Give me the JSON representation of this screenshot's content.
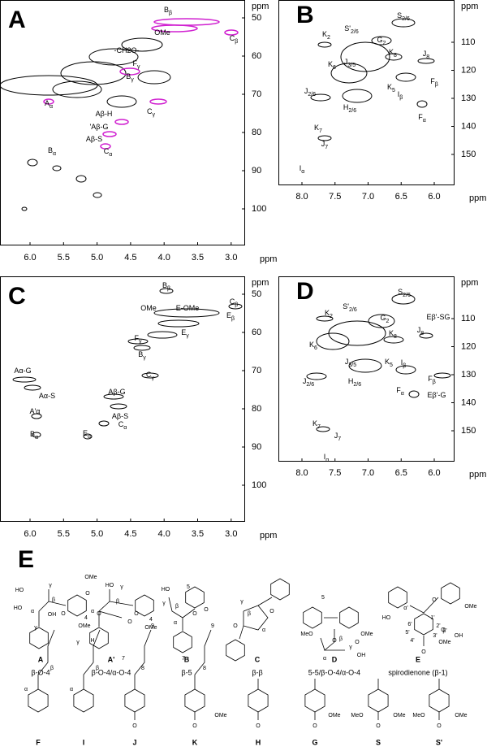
{
  "panels": [
    {
      "letter": "A",
      "unit": "ppm",
      "xticks": [
        "6.0",
        "5.5",
        "5.0",
        "4.5",
        "4.0",
        "3.5",
        "3.0"
      ],
      "yticks": [
        "50",
        "60",
        "70",
        "80",
        "90",
        "100"
      ],
      "peaks": [
        {
          "label": "B",
          "sub": "β"
        },
        {
          "label": "OMe",
          "sub": ""
        },
        {
          "label": "C",
          "sub": "β"
        },
        {
          "label": "-CH2O-",
          "sub": ""
        },
        {
          "label": "F",
          "sub": "γ"
        },
        {
          "label": "B",
          "sub": "γ"
        },
        {
          "label": "C",
          "sub": "γ"
        },
        {
          "label": "A",
          "sub": "α"
        },
        {
          "label": "Aβ-H",
          "sub": ""
        },
        {
          "label": "'Aβ-G",
          "sub": ""
        },
        {
          "label": "Aβ-S",
          "sub": ""
        },
        {
          "label": "B",
          "sub": "α"
        },
        {
          "label": "C",
          "sub": "α"
        }
      ]
    },
    {
      "letter": "B",
      "unit": "ppm",
      "xticks": [
        "8.0",
        "7.5",
        "7.0",
        "6.5",
        "6.0"
      ],
      "yticks": [
        "110",
        "120",
        "130",
        "140",
        "150"
      ],
      "peaks": [
        {
          "label": "S",
          "sub": "2/6"
        },
        {
          "label": "S'",
          "sub": "2/6"
        },
        {
          "label": "G",
          "sub": "2"
        },
        {
          "label": "K",
          "sub": "2"
        },
        {
          "label": "K",
          "sub": "6"
        },
        {
          "label": "J",
          "sub": "3/5"
        },
        {
          "label": "K",
          "sub": "8"
        },
        {
          "label": "J",
          "sub": "8"
        },
        {
          "label": "K",
          "sub": "5"
        },
        {
          "label": "F",
          "sub": "β"
        },
        {
          "label": "J",
          "sub": "2/6"
        },
        {
          "label": "H",
          "sub": "2/6"
        },
        {
          "label": "I",
          "sub": "β"
        },
        {
          "label": "F",
          "sub": "α"
        },
        {
          "label": "K",
          "sub": "7"
        },
        {
          "label": "J",
          "sub": "7"
        },
        {
          "label": "I",
          "sub": "α"
        }
      ]
    },
    {
      "letter": "C",
      "unit": "ppm",
      "xticks": [
        "6.0",
        "5.5",
        "5.0",
        "4.5",
        "4.0",
        "3.5",
        "3.0"
      ],
      "yticks": [
        "50",
        "60",
        "70",
        "80",
        "90",
        "100"
      ],
      "peaks": [
        {
          "label": "B",
          "sub": "β"
        },
        {
          "label": "OMe",
          "sub": ""
        },
        {
          "label": "E-OMe",
          "sub": ""
        },
        {
          "label": "C",
          "sub": "β"
        },
        {
          "label": "E",
          "sub": "β"
        },
        {
          "label": "E",
          "sub": "γ"
        },
        {
          "label": "F",
          "sub": "γ"
        },
        {
          "label": "B",
          "sub": "γ"
        },
        {
          "label": "C",
          "sub": "γ"
        },
        {
          "label": "Aα-G",
          "sub": ""
        },
        {
          "label": "Aα-S",
          "sub": ""
        },
        {
          "label": "A'α",
          "sub": ""
        },
        {
          "label": "B",
          "sub": "α"
        },
        {
          "label": "Aβ-G",
          "sub": ""
        },
        {
          "label": "Aβ-S",
          "sub": ""
        },
        {
          "label": "E",
          "sub": "α"
        },
        {
          "label": "C",
          "sub": "α"
        }
      ]
    },
    {
      "letter": "D",
      "unit": "ppm",
      "xticks": [
        "8.0",
        "7.5",
        "7.0",
        "6.5",
        "6.0"
      ],
      "yticks": [
        "110",
        "120",
        "130",
        "140",
        "150"
      ],
      "peaks": [
        {
          "label": "S",
          "sub": "2/6"
        },
        {
          "label": "S'",
          "sub": "2/6"
        },
        {
          "label": "K",
          "sub": "2"
        },
        {
          "label": "G",
          "sub": "2"
        },
        {
          "label": "Eβ'-SG",
          "sub": ""
        },
        {
          "label": "K",
          "sub": "8"
        },
        {
          "label": "J",
          "sub": "8"
        },
        {
          "label": "K",
          "sub": "6"
        },
        {
          "label": "J",
          "sub": "3/5"
        },
        {
          "label": "K",
          "sub": "5"
        },
        {
          "label": "I",
          "sub": "β"
        },
        {
          "label": "F",
          "sub": "β"
        },
        {
          "label": "J",
          "sub": "2/6"
        },
        {
          "label": "H",
          "sub": "2/6"
        },
        {
          "label": "F",
          "sub": "α"
        },
        {
          "label": "Eβ'-G",
          "sub": ""
        },
        {
          "label": "K",
          "sub": "7"
        },
        {
          "label": "J",
          "sub": "7"
        },
        {
          "label": "I",
          "sub": "α"
        }
      ]
    }
  ],
  "structures": {
    "letter": "E",
    "row1": [
      {
        "name": "A",
        "caption": "β-O-4",
        "atoms": [
          "HO",
          "γ",
          "β",
          "α",
          "HO",
          "O",
          "4",
          "OMe"
        ]
      },
      {
        "name": "A'",
        "caption": "β-O-4/α-O-4",
        "atoms": [
          "O",
          "OMe",
          "HO",
          "γ",
          "β",
          "α",
          "O",
          "4",
          "OMe"
        ]
      },
      {
        "name": "B",
        "caption": "β-5",
        "atoms": [
          "5",
          "HO",
          "γ",
          "β",
          "O",
          "α"
        ]
      },
      {
        "name": "C",
        "caption": "β-β",
        "atoms": [
          "γ",
          "β",
          "α",
          "O",
          "O"
        ]
      },
      {
        "name": "D",
        "caption": "5-5/β-O-4/α-O-4",
        "atoms": [
          "5",
          "MeO",
          "O",
          "α",
          "β",
          "γ",
          "OH",
          "OMe",
          "O"
        ]
      },
      {
        "name": "E",
        "caption": "spirodienone (β-1)",
        "atoms": [
          "HO",
          "α'",
          "O",
          "OMe",
          "1'",
          "6'",
          "2'",
          "5'",
          "3'",
          "OMe",
          "β'",
          "OH",
          "4'",
          "O"
        ]
      }
    ],
    "row2": [
      {
        "name": "F",
        "atoms": [
          "γ",
          "OH",
          "α",
          "β"
        ]
      },
      {
        "name": "I",
        "atoms": [
          "O",
          "γ",
          "H",
          "α",
          "β"
        ]
      },
      {
        "name": "J",
        "atoms": [
          "O",
          "9",
          "7",
          "8",
          "O"
        ]
      },
      {
        "name": "K",
        "atoms": [
          "O",
          "9",
          "7",
          "8",
          "OMe",
          "O"
        ]
      },
      {
        "name": "H",
        "atoms": [
          "O"
        ]
      },
      {
        "name": "G",
        "atoms": [
          "OMe",
          "O"
        ]
      },
      {
        "name": "S",
        "atoms": [
          "MeO",
          "OMe",
          "O"
        ]
      },
      {
        "name": "S'",
        "atoms": [
          "O",
          "MeO",
          "OMe",
          "O"
        ]
      }
    ]
  }
}
